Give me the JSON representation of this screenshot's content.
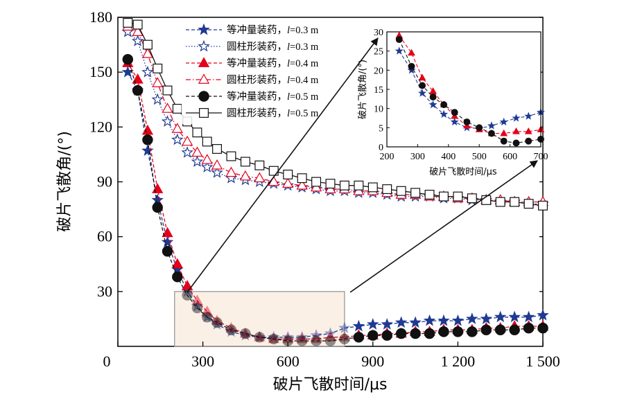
{
  "chart_data": [
    {
      "type": "line",
      "xlabel": "破片飞散时间/μs",
      "ylabel": "破片飞散角/(°)",
      "xlim": [
        0,
        1500
      ],
      "ylim": [
        0,
        180
      ],
      "xticks": [
        "0",
        "300",
        "600",
        "900",
        "1 200",
        "1 500"
      ],
      "yticks": [
        "0",
        "30",
        "60",
        "90",
        "120",
        "150",
        "180"
      ],
      "legend_position": "top-center",
      "highlight_region": {
        "x": [
          200,
          800
        ],
        "y": [
          0,
          30
        ]
      },
      "series": [
        {
          "name": "等冲量装药，l=0.3 m",
          "name_prefix": "等冲量装药，",
          "name_var": "l",
          "name_suffix": "=0.3 m",
          "color": "#1f3a93",
          "line": "dashed",
          "marker": "star-filled",
          "x": [
            35,
            70,
            105,
            140,
            175,
            210,
            245,
            280,
            315,
            350,
            400,
            450,
            500,
            550,
            600,
            650,
            700,
            750,
            800,
            850,
            900,
            950,
            1000,
            1050,
            1100,
            1150,
            1200,
            1250,
            1300,
            1350,
            1400,
            1450,
            1500
          ],
          "y": [
            150,
            140,
            107,
            80,
            57,
            42,
            30,
            22,
            16,
            12,
            8,
            6,
            5,
            5,
            5,
            5,
            6,
            7,
            10,
            11,
            12,
            12,
            13,
            13,
            14,
            14,
            14,
            15,
            15,
            16,
            16,
            16,
            17
          ]
        },
        {
          "name": "圆柱形装药，l=0.3 m",
          "name_prefix": "圆柱形装药，",
          "name_var": "l",
          "name_suffix": "=0.3 m",
          "color": "#1f3a93",
          "line": "dotted",
          "marker": "star-open",
          "x": [
            35,
            70,
            105,
            140,
            175,
            210,
            245,
            280,
            315,
            350,
            400,
            450,
            500,
            550,
            600,
            650,
            700,
            750,
            800,
            850,
            900,
            950,
            1000,
            1050,
            1100,
            1150,
            1200,
            1250,
            1300,
            1350,
            1400,
            1450,
            1500
          ],
          "y": [
            172,
            167,
            150,
            135,
            123,
            113,
            106,
            101,
            98,
            95,
            92,
            91,
            90,
            89,
            88,
            87,
            86,
            85,
            85,
            84,
            84,
            83,
            82,
            82,
            82,
            81,
            81,
            80,
            80,
            79,
            79,
            78,
            78
          ]
        },
        {
          "name": "等冲量装药，l=0.4 m",
          "name_prefix": "等冲量装药，",
          "name_var": "l",
          "name_suffix": "=0.4 m",
          "color": "#e3001b",
          "line": "dashed",
          "marker": "triangle-filled",
          "x": [
            35,
            70,
            105,
            140,
            175,
            210,
            245,
            280,
            315,
            350,
            400,
            450,
            500,
            550,
            600,
            650,
            700,
            750,
            800,
            850,
            900,
            950,
            1000,
            1050,
            1100,
            1150,
            1200,
            1250,
            1300,
            1350,
            1400,
            1450,
            1500
          ],
          "y": [
            155,
            146,
            118,
            86,
            62,
            45,
            33,
            25,
            19,
            14,
            10,
            7,
            5,
            4,
            4,
            4,
            4,
            5,
            5,
            6,
            6,
            7,
            7,
            8,
            8,
            9,
            9,
            9,
            10,
            10,
            11,
            11,
            11
          ]
        },
        {
          "name": "圆柱形装药，l=0.4 m",
          "name_prefix": "圆柱形装药，",
          "name_var": "l",
          "name_suffix": "=0.4 m",
          "color": "#e3001b",
          "line": "dashdot",
          "marker": "triangle-open",
          "x": [
            35,
            70,
            105,
            140,
            175,
            210,
            245,
            280,
            315,
            350,
            400,
            450,
            500,
            550,
            600,
            650,
            700,
            750,
            800,
            850,
            900,
            950,
            1000,
            1050,
            1100,
            1150,
            1200,
            1250,
            1300,
            1350,
            1400,
            1450,
            1500
          ],
          "y": [
            175,
            172,
            160,
            144,
            130,
            119,
            112,
            106,
            102,
            99,
            95,
            93,
            92,
            90,
            89,
            88,
            87,
            86,
            86,
            85,
            85,
            84,
            83,
            83,
            82,
            82,
            81,
            81,
            80,
            80,
            79,
            79,
            79
          ]
        },
        {
          "name": "等冲量装药，l=0.5 m",
          "name_prefix": "等冲量装药，",
          "name_var": "l",
          "name_suffix": "=0.5 m",
          "color": "#111111",
          "line": "dashed",
          "marker": "circle-filled",
          "x": [
            35,
            70,
            105,
            140,
            175,
            210,
            245,
            280,
            315,
            350,
            400,
            450,
            500,
            550,
            600,
            650,
            700,
            750,
            800,
            850,
            900,
            950,
            1000,
            1050,
            1100,
            1150,
            1200,
            1250,
            1300,
            1350,
            1400,
            1450,
            1500
          ],
          "y": [
            157,
            140,
            113,
            76,
            52,
            38,
            28,
            21,
            16,
            13,
            9,
            7,
            5,
            4,
            3,
            3,
            3,
            3,
            4,
            5,
            6,
            6,
            7,
            7,
            7,
            8,
            8,
            8,
            9,
            9,
            9,
            10,
            10
          ]
        },
        {
          "name": "圆柱形装药，l=0.5 m",
          "name_prefix": "圆柱形装药，",
          "name_var": "l",
          "name_suffix": "=0.5 m",
          "color": "#111111",
          "line": "solid",
          "marker": "square-open",
          "x": [
            35,
            70,
            105,
            140,
            175,
            210,
            245,
            280,
            315,
            350,
            400,
            450,
            500,
            550,
            600,
            650,
            700,
            750,
            800,
            850,
            900,
            950,
            1000,
            1050,
            1100,
            1150,
            1200,
            1250,
            1300,
            1350,
            1400,
            1450,
            1500
          ],
          "y": [
            177,
            176,
            165,
            152,
            140,
            130,
            123,
            117,
            112,
            108,
            104,
            101,
            99,
            96,
            94,
            92,
            90,
            89,
            88,
            88,
            87,
            86,
            85,
            84,
            83,
            82,
            82,
            81,
            80,
            79,
            79,
            78,
            77
          ]
        }
      ]
    },
    {
      "type": "line",
      "role": "inset",
      "xlabel": "破片飞散时间/μs",
      "ylabel": "破片飞散角/(°)",
      "xlim": [
        200,
        700
      ],
      "ylim": [
        0,
        30
      ],
      "xticks": [
        "200",
        "300",
        "400",
        "500",
        "600",
        "700"
      ],
      "yticks": [
        "0",
        "5",
        "10",
        "15",
        "20",
        "25",
        "30"
      ],
      "series": [
        {
          "color": "#1f3a93",
          "line": "dashed",
          "marker": "star-filled",
          "x": [
            240,
            280,
            315,
            350,
            385,
            420,
            460,
            500,
            540,
            580,
            620,
            660,
            700
          ],
          "y": [
            25,
            20,
            14,
            11,
            8.5,
            6.5,
            5,
            4.8,
            5.5,
            6.5,
            7.5,
            8,
            9
          ]
        },
        {
          "color": "#e3001b",
          "line": "dashed",
          "marker": "triangle-filled",
          "x": [
            240,
            280,
            315,
            350,
            385,
            420,
            460,
            500,
            540,
            580,
            620,
            660,
            700
          ],
          "y": [
            29,
            24.5,
            18,
            14.5,
            11,
            8,
            5.5,
            4.5,
            3.5,
            3.5,
            4,
            4,
            4.5
          ]
        },
        {
          "color": "#111111",
          "line": "dashed",
          "marker": "circle-filled",
          "x": [
            240,
            280,
            315,
            350,
            385,
            420,
            460,
            500,
            540,
            580,
            620,
            660,
            700
          ],
          "y": [
            28,
            21,
            16,
            13,
            11,
            9,
            6.5,
            5,
            3.5,
            1.5,
            1,
            1.5,
            2
          ]
        }
      ]
    }
  ]
}
